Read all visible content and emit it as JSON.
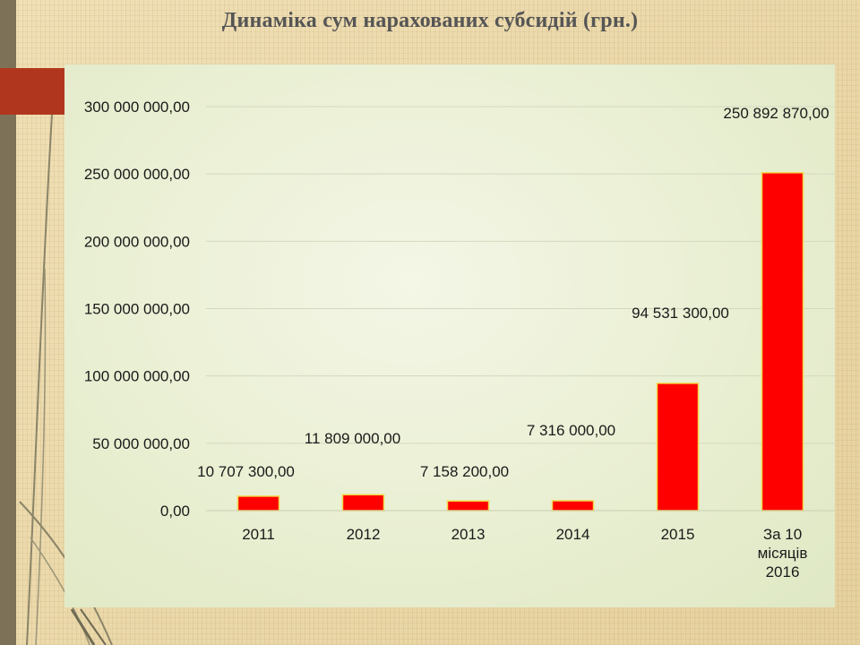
{
  "slide": {
    "title": "Динаміка сум нарахованих субсидій (грн.)"
  },
  "colors": {
    "bar_fill": "#ff0000",
    "bar_stroke": "#f2d84a",
    "accent": "#b0371d",
    "side_band": "#7d7257"
  },
  "chart_data": {
    "type": "bar",
    "title": "",
    "xlabel": "",
    "ylabel": "",
    "categories": [
      [
        "2011"
      ],
      [
        "2012"
      ],
      [
        "2013"
      ],
      [
        "2014"
      ],
      [
        "2015"
      ],
      [
        "За 10",
        "місяців",
        "2016"
      ]
    ],
    "values": [
      10707300,
      11809000,
      7158200,
      7316000,
      94531300,
      250892870
    ],
    "data_labels": [
      "10 707 300,00",
      "11 809 000,00",
      "7 158 200,00",
      "7 316 000,00",
      "94 531 300,00",
      "250 892 870,00"
    ],
    "ylim": [
      0,
      300000000
    ],
    "yticks": [
      0,
      50000000,
      100000000,
      150000000,
      200000000,
      250000000,
      300000000
    ],
    "ytick_labels": [
      "0,00",
      "50 000 000,00",
      "100 000 000,00",
      "150 000 000,00",
      "200 000 000,00",
      "250 000 000,00",
      "300 000 000,00"
    ],
    "grid": true,
    "legend": "none"
  }
}
